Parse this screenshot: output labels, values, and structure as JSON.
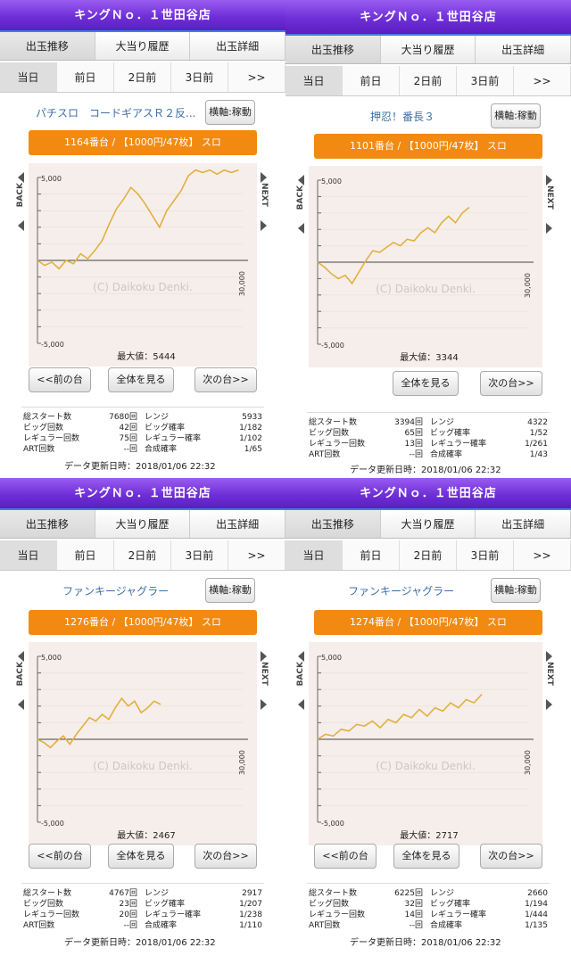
{
  "store_name": "キングＮｏ．１世田谷店",
  "tabs": [
    "出玉推移",
    "大当り履歴",
    "出玉詳細"
  ],
  "days": [
    "当日",
    "前日",
    "2日前",
    "3日前",
    ">>"
  ],
  "axis_button": "横軸:稼動",
  "nav": {
    "prev": "<<前の台",
    "all": "全体を見る",
    "next": "次の台>>"
  },
  "side": {
    "back": "BACK",
    "next": "NEXT"
  },
  "watermark": "(C) Daikoku Denki.",
  "stat_labels": {
    "start": "総スタート数",
    "big": "ビッグ回数",
    "reg": "レギュラー回数",
    "art": "ART回数",
    "range": "レンジ",
    "big_prob": "ビッグ確率",
    "reg_prob": "レギュラー確率",
    "combined": "合成確率"
  },
  "updated": "データ更新日時：2018/01/06 22:32",
  "colors": {
    "header": "#6f2fd8",
    "machine_bar": "#f28a12",
    "title": "#3d6fa8",
    "line": "#e0b040",
    "chart_bg": "#f6eeea"
  },
  "panels": [
    {
      "title": "パチスロ　コードギアスＲ２反...",
      "machine": "1164番台 / 【1000円/47枚】 スロ",
      "max_label": "最大値：5444",
      "show_prev": true,
      "stats": {
        "start": "7680回",
        "big": "42回",
        "reg": "75回",
        "art": "--回",
        "range": "5933",
        "big_prob": "1/182",
        "reg_prob": "1/102",
        "combined": "1/65"
      },
      "chart_data": {
        "type": "line",
        "ylim": [
          -5000,
          5000
        ],
        "y_ticks": [
          "5,000",
          "-5,000"
        ],
        "x_label": "30,000",
        "values": [
          0,
          -300,
          -100,
          -500,
          0,
          -200,
          400,
          100,
          600,
          1200,
          2200,
          3100,
          3700,
          4400,
          4000,
          3400,
          2700,
          2000,
          3000,
          3600,
          4200,
          5100,
          5444,
          5300,
          5444,
          5200,
          5444,
          5300,
          5444
        ]
      }
    },
    {
      "title": "押忍！番長３",
      "machine": "1101番台 / 【1000円/47枚】 スロ",
      "max_label": "最大値：3344",
      "show_prev": false,
      "stats": {
        "start": "3394回",
        "big": "65回",
        "reg": "13回",
        "art": "--回",
        "range": "4322",
        "big_prob": "1/52",
        "reg_prob": "1/261",
        "combined": "1/43"
      },
      "chart_data": {
        "type": "line",
        "ylim": [
          -5000,
          5000
        ],
        "y_ticks": [
          "5,000",
          "-5,000"
        ],
        "x_label": "30,000",
        "values": [
          0,
          -300,
          -700,
          -1000,
          -800,
          -1300,
          -600,
          100,
          700,
          600,
          900,
          1200,
          1000,
          1400,
          1300,
          1800,
          2100,
          1800,
          2400,
          2800,
          2400,
          3000,
          3344
        ]
      }
    },
    {
      "title": "ファンキージャグラー",
      "machine": "1276番台 / 【1000円/47枚】 スロ",
      "max_label": "最大値：2467",
      "show_prev": true,
      "stats": {
        "start": "4767回",
        "big": "23回",
        "reg": "20回",
        "art": "--回",
        "range": "2917",
        "big_prob": "1/207",
        "reg_prob": "1/238",
        "combined": "1/110"
      },
      "chart_data": {
        "type": "line",
        "ylim": [
          -5000,
          5000
        ],
        "y_ticks": [
          "5,000",
          "-5,000"
        ],
        "x_label": "30,000",
        "values": [
          0,
          -200,
          -500,
          -100,
          200,
          -300,
          300,
          800,
          1300,
          1100,
          1500,
          1200,
          1900,
          2467,
          2000,
          2300,
          1600,
          1900,
          2300,
          2100
        ]
      }
    },
    {
      "title": "ファンキージャグラー",
      "machine": "1274番台 / 【1000円/47枚】 スロ",
      "max_label": "最大値：2717",
      "show_prev": true,
      "stats": {
        "start": "6225回",
        "big": "32回",
        "reg": "14回",
        "art": "--回",
        "range": "2660",
        "big_prob": "1/194",
        "reg_prob": "1/444",
        "combined": "1/135"
      },
      "chart_data": {
        "type": "line",
        "ylim": [
          -5000,
          5000
        ],
        "y_ticks": [
          "5,000",
          "-5,000"
        ],
        "x_label": "30,000",
        "values": [
          0,
          300,
          200,
          600,
          500,
          900,
          800,
          1100,
          700,
          1200,
          1000,
          1500,
          1300,
          1800,
          1400,
          1900,
          1700,
          2200,
          1900,
          2400,
          2200,
          2717
        ]
      }
    }
  ]
}
